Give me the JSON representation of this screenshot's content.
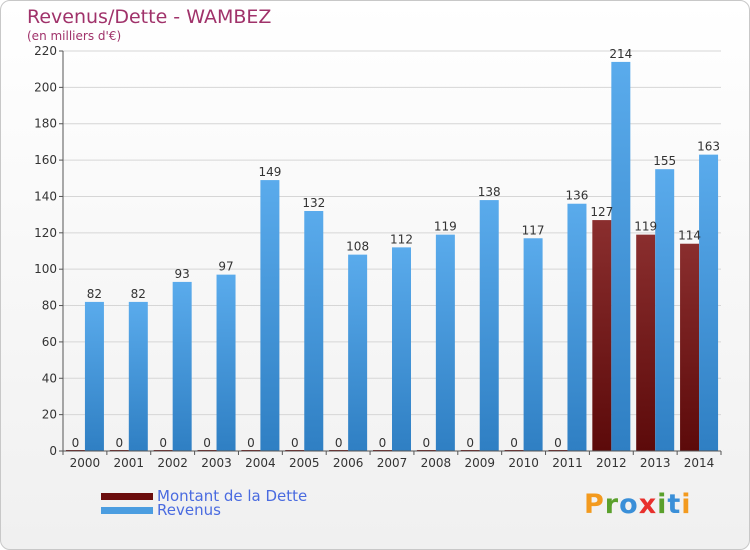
{
  "header": {
    "title": "Revenus/Dette - WAMBEZ",
    "subtitle": "(en milliers d'€)"
  },
  "legend": {
    "items": [
      {
        "label": "Montant de la Dette",
        "color": "#6b0d0d"
      },
      {
        "label": "Revenus",
        "color": "#4b9de0"
      }
    ]
  },
  "logo": {
    "letters": [
      {
        "ch": "P",
        "color": "#f39a1e"
      },
      {
        "ch": "r",
        "color": "#5aa02c"
      },
      {
        "ch": "o",
        "color": "#3a8fd8"
      },
      {
        "ch": "x",
        "color": "#e8302c"
      },
      {
        "ch": "i",
        "color": "#5aa02c"
      },
      {
        "ch": "t",
        "color": "#3a8fd8"
      },
      {
        "ch": "i",
        "color": "#f39a1e"
      }
    ]
  },
  "chart_data": {
    "type": "bar",
    "categories": [
      "2000",
      "2001",
      "2002",
      "2003",
      "2004",
      "2005",
      "2006",
      "2007",
      "2008",
      "2009",
      "2010",
      "2011",
      "2012",
      "2013",
      "2014"
    ],
    "series": [
      {
        "name": "Montant de la Dette",
        "color": "#7a1a1a",
        "values": [
          0,
          0,
          0,
          0,
          0,
          0,
          0,
          0,
          0,
          0,
          0,
          0,
          127,
          119,
          114
        ]
      },
      {
        "name": "Revenus",
        "color": "#4b9de0",
        "values": [
          82,
          82,
          93,
          97,
          149,
          132,
          108,
          112,
          119,
          138,
          117,
          136,
          214,
          155,
          163
        ]
      }
    ],
    "ylim": [
      0,
      220
    ],
    "yticks": [
      0,
      20,
      40,
      60,
      80,
      100,
      120,
      140,
      160,
      180,
      200,
      220
    ],
    "grid": true
  }
}
